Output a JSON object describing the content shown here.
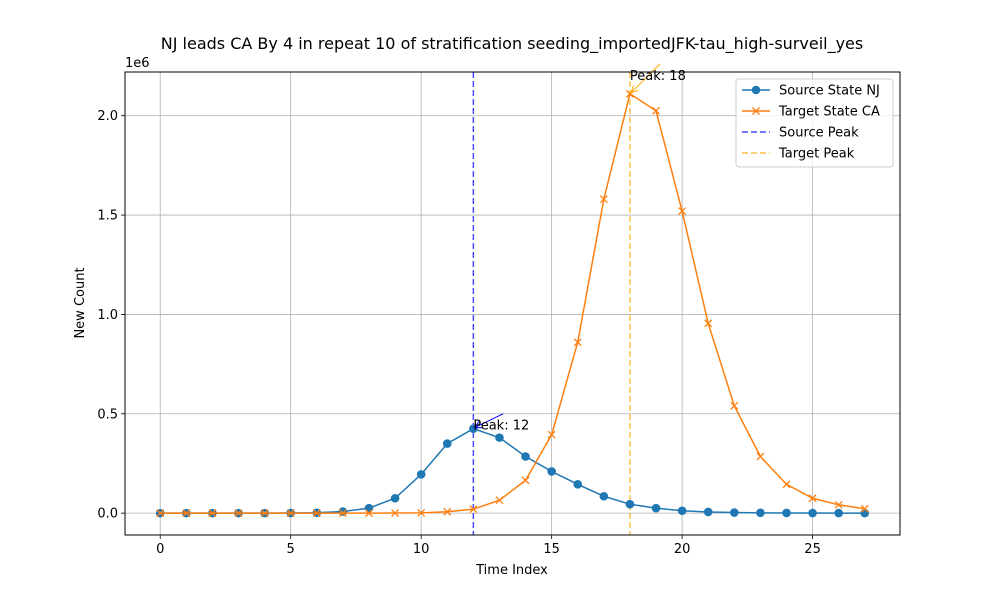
{
  "chart_data": {
    "type": "line",
    "title": "NJ leads CA By 4 in repeat 10 of stratification seeding_importedJFK-tau_high-surveil_yes",
    "xlabel": "Time Index",
    "ylabel": "New Count",
    "y_offset_text": "1e6",
    "xlim": [
      -1.35,
      28.35
    ],
    "ylim": [
      -110000,
      2220000
    ],
    "x_ticks": [
      0,
      5,
      10,
      15,
      20,
      25
    ],
    "x_tick_labels": [
      "0",
      "5",
      "10",
      "15",
      "20",
      "25"
    ],
    "y_ticks": [
      0,
      500000,
      1000000,
      1500000,
      2000000
    ],
    "y_tick_labels": [
      "0.0",
      "0.5",
      "1.0",
      "1.5",
      "2.0"
    ],
    "grid": true,
    "legend_position": "top-right",
    "x": [
      0,
      1,
      2,
      3,
      4,
      5,
      6,
      7,
      8,
      9,
      10,
      11,
      12,
      13,
      14,
      15,
      16,
      17,
      18,
      19,
      20,
      21,
      22,
      23,
      24,
      25,
      26,
      27
    ],
    "series": [
      {
        "name": "Source State NJ",
        "color": "#1f77b4",
        "marker": "circle",
        "values": [
          0,
          0,
          0,
          0,
          100,
          500,
          2000,
          8000,
          25000,
          75000,
          195000,
          350000,
          425000,
          380000,
          285000,
          210000,
          145000,
          85000,
          45000,
          25000,
          12000,
          6000,
          3000,
          1500,
          1000,
          500,
          300,
          200
        ]
      },
      {
        "name": "Target State CA",
        "color": "#ff7f0e",
        "marker": "x",
        "values": [
          0,
          0,
          0,
          0,
          0,
          0,
          0,
          0,
          100,
          500,
          1500,
          7000,
          20000,
          65000,
          165000,
          395000,
          860000,
          1580000,
          2110000,
          2025000,
          1520000,
          955000,
          540000,
          285000,
          145000,
          75000,
          42000,
          22000
        ]
      }
    ],
    "peak_lines": [
      {
        "name": "Source Peak",
        "x": 12,
        "color": "#0000ff"
      },
      {
        "name": "Target Peak",
        "x": 18,
        "color": "#ffa500"
      }
    ],
    "annotations": [
      {
        "text": "Peak: 12",
        "x": 12,
        "y": 425000,
        "text_x": 12,
        "text_y": 440000,
        "color": "#0000ff"
      },
      {
        "text": "Peak: 18",
        "x": 18,
        "y": 2110000,
        "text_x": 18,
        "text_y": 2200000,
        "color": "#ffa500"
      }
    ]
  }
}
